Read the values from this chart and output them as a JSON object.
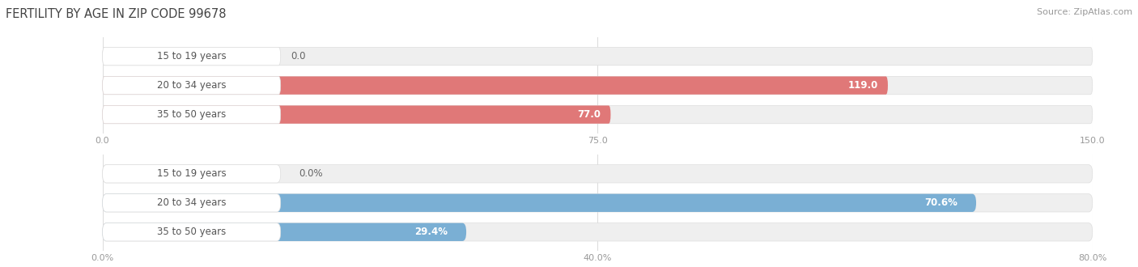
{
  "title": "FERTILITY BY AGE IN ZIP CODE 99678",
  "source": "Source: ZipAtlas.com",
  "top_chart": {
    "categories": [
      "15 to 19 years",
      "20 to 34 years",
      "35 to 50 years"
    ],
    "values": [
      0.0,
      119.0,
      77.0
    ],
    "value_labels": [
      "0.0",
      "119.0",
      "77.0"
    ],
    "xlim": [
      0,
      150
    ],
    "xticks": [
      0.0,
      75.0,
      150.0
    ],
    "xtick_labels": [
      "0.0",
      "75.0",
      "150.0"
    ],
    "bar_color": "#E07878",
    "bar_bg_color": "#EFEFEF",
    "label_inside_color": "#FFFFFF",
    "label_outside_color": "#666666"
  },
  "bottom_chart": {
    "categories": [
      "15 to 19 years",
      "20 to 34 years",
      "35 to 50 years"
    ],
    "values": [
      0.0,
      70.6,
      29.4
    ],
    "value_labels": [
      "0.0%",
      "70.6%",
      "29.4%"
    ],
    "xlim": [
      0,
      80
    ],
    "xticks": [
      0.0,
      40.0,
      80.0
    ],
    "xtick_labels": [
      "0.0%",
      "40.0%",
      "80.0%"
    ],
    "bar_color": "#7AAFD4",
    "bar_bg_color": "#EFEFEF",
    "label_inside_color": "#FFFFFF",
    "label_outside_color": "#666666"
  },
  "bg_color": "#FFFFFF",
  "bar_height": 0.62,
  "category_label_color": "#555555",
  "category_label_fontsize": 8.5,
  "value_fontsize": 8.5,
  "title_fontsize": 10.5,
  "source_fontsize": 8,
  "axis_tick_color": "#999999",
  "axis_tick_fontsize": 8,
  "grid_color": "#DDDDDD",
  "cat_bubble_color": "#FFFFFF",
  "cat_bubble_edge": "#DDDDDD"
}
